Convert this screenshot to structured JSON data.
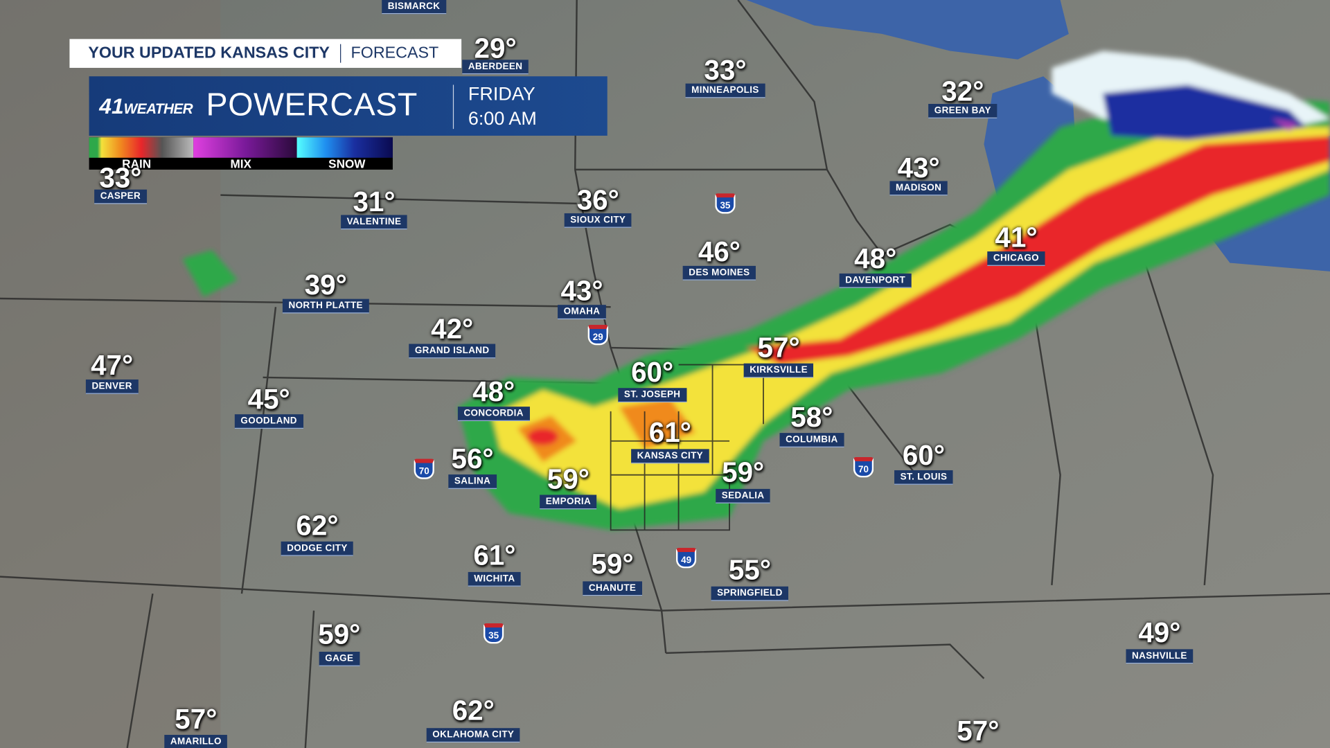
{
  "header": {
    "title": "YOUR UPDATED KANSAS CITY",
    "subtitle": "FORECAST"
  },
  "brand": {
    "logo_number": "41",
    "logo_text": "WEATHER",
    "product": "POWERCAST",
    "day": "FRIDAY",
    "time": "6:00 AM"
  },
  "legend": [
    "RAIN",
    "MIX",
    "SNOW"
  ],
  "cities": [
    {
      "temp": "29°",
      "name": "ABERDEEN"
    },
    {
      "temp": "33°",
      "name": "MINNEAPOLIS"
    },
    {
      "temp": "32°",
      "name": "GREEN BAY"
    },
    {
      "temp": "33°",
      "name": "CASPER"
    },
    {
      "temp": "31°",
      "name": "VALENTINE"
    },
    {
      "temp": "36°",
      "name": "SIOUX CITY"
    },
    {
      "temp": "43°",
      "name": "MADISON"
    },
    {
      "temp": "46°",
      "name": "DES MOINES"
    },
    {
      "temp": "41°",
      "name": "CHICAGO"
    },
    {
      "temp": "48°",
      "name": "DAVENPORT"
    },
    {
      "temp": "39°",
      "name": "NORTH PLATTE"
    },
    {
      "temp": "43°",
      "name": "OMAHA"
    },
    {
      "temp": "42°",
      "name": "GRAND ISLAND"
    },
    {
      "temp": "47°",
      "name": "DENVER"
    },
    {
      "temp": "57°",
      "name": "KIRKSVILLE"
    },
    {
      "temp": "60°",
      "name": "ST. JOSEPH"
    },
    {
      "temp": "48°",
      "name": "CONCORDIA"
    },
    {
      "temp": "45°",
      "name": "GOODLAND"
    },
    {
      "temp": "61°",
      "name": "KANSAS CITY"
    },
    {
      "temp": "58°",
      "name": "COLUMBIA"
    },
    {
      "temp": "56°",
      "name": "SALINA"
    },
    {
      "temp": "59°",
      "name": "EMPORIA"
    },
    {
      "temp": "59°",
      "name": "SEDALIA"
    },
    {
      "temp": "60°",
      "name": "ST. LOUIS"
    },
    {
      "temp": "62°",
      "name": "DODGE CITY"
    },
    {
      "temp": "61°",
      "name": "WICHITA"
    },
    {
      "temp": "59°",
      "name": "CHANUTE"
    },
    {
      "temp": "55°",
      "name": "SPRINGFIELD"
    },
    {
      "temp": "49°",
      "name": "NASHVILLE"
    },
    {
      "temp": "59°",
      "name": "GAGE"
    },
    {
      "temp": "57°",
      "name": "AMARILLO"
    },
    {
      "temp": "62°",
      "name": "OKLAHOMA CITY"
    },
    {
      "temp": "57°"
    }
  ],
  "labels": [
    "BISMARCK"
  ],
  "highways": [
    "35",
    "29",
    "70",
    "70",
    "49",
    "35"
  ]
}
